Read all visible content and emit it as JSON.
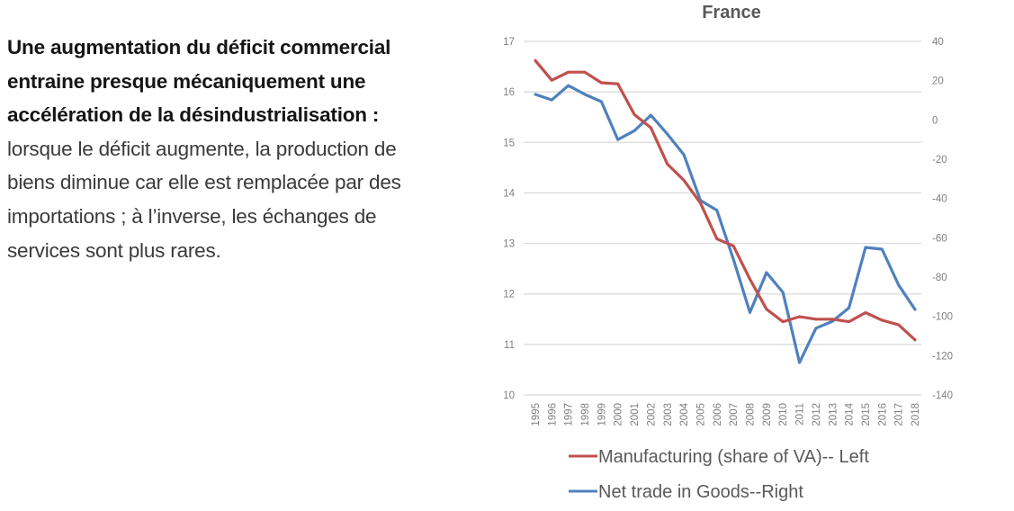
{
  "description": {
    "bold_text": "Une augmentation du déficit commercial entraine presque mécaniquement une accélération de la désindustrialisation :",
    "regular_text": " lorsque le déficit augmente, la production de biens diminue car elle est remplacée par des importations ; à l’inverse, les échanges de services sont plus rares."
  },
  "chart_data": {
    "type": "line",
    "title": "France",
    "xlabel": "",
    "ylabel_left": "",
    "ylabel_right": "",
    "x": [
      "1995",
      "1996",
      "1997",
      "1998",
      "1999",
      "2000",
      "2001",
      "2002",
      "2003",
      "2004",
      "2005",
      "2006",
      "2007",
      "2008",
      "2009",
      "2010",
      "2011",
      "2012",
      "2013",
      "2014",
      "2015",
      "2016",
      "2017",
      "2018"
    ],
    "y_left_lim": [
      10,
      17
    ],
    "y_left_ticks": [
      "10",
      "11",
      "12",
      "13",
      "14",
      "15",
      "16",
      "17"
    ],
    "y_right_lim": [
      -140,
      40
    ],
    "y_right_ticks": [
      "-140",
      "-120",
      "-100",
      "-80",
      "-60",
      "-40",
      "-20",
      "0",
      "20",
      "40"
    ],
    "grid": true,
    "legend_position": "bottom",
    "series": [
      {
        "name": "Manufacturing (share of VA)-- Left",
        "axis": "left",
        "color": "#C0504D",
        "values": [
          16.62,
          16.23,
          16.39,
          16.39,
          16.18,
          16.16,
          15.55,
          15.29,
          14.57,
          14.25,
          13.8,
          13.09,
          12.95,
          12.29,
          11.7,
          11.45,
          11.55,
          11.5,
          11.5,
          11.45,
          11.63,
          11.48,
          11.39,
          11.09
        ]
      },
      {
        "name": "Net trade in Goods--Right",
        "axis": "right",
        "color": "#4F81BD",
        "values": [
          13,
          10.2,
          17.5,
          13,
          9.3,
          -10,
          -5.5,
          2.4,
          -7.2,
          -17.7,
          -41,
          -46,
          -71,
          -98,
          -77.7,
          -87.8,
          -123.5,
          -106,
          -102.5,
          -95.6,
          -64.9,
          -65.8,
          -84,
          -96.5
        ]
      }
    ]
  }
}
